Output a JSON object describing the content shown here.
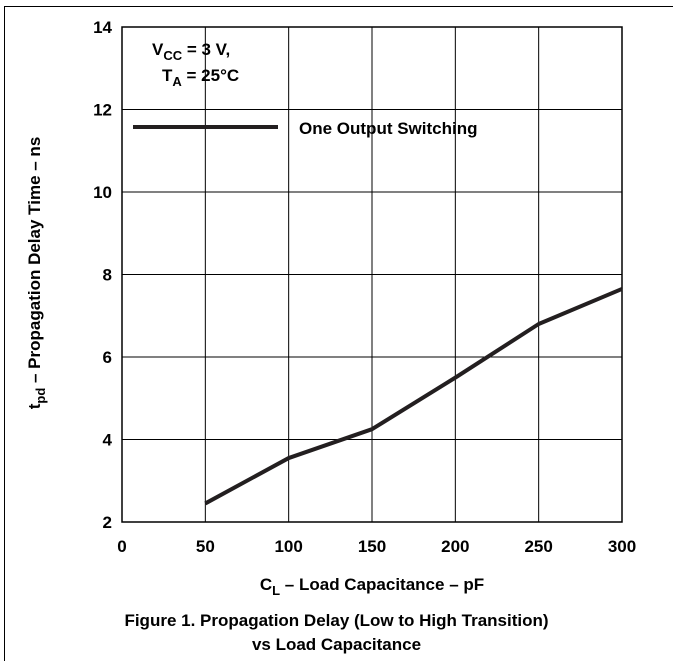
{
  "chart_data": {
    "type": "line",
    "x": [
      50,
      100,
      150,
      200,
      250,
      300
    ],
    "series": [
      {
        "name": "One Output Switching",
        "values": [
          2.45,
          3.55,
          4.25,
          5.5,
          6.8,
          7.65
        ]
      }
    ],
    "xlim": [
      0,
      300
    ],
    "ylim": [
      2,
      14
    ],
    "x_ticks": [
      "0",
      "50",
      "100",
      "150",
      "200",
      "250",
      "300"
    ],
    "y_ticks": [
      "2",
      "4",
      "6",
      "8",
      "10",
      "12",
      "14"
    ],
    "grid": true,
    "legend_position": "top-left",
    "line_color": "#231f20",
    "conditions": {
      "vcc": {
        "main": "V",
        "sub": "CC",
        "rest": " = 3 V,"
      },
      "ta": {
        "main": "T",
        "sub": "A",
        "rest": " = 25°C"
      }
    },
    "xlabel": {
      "main": "C",
      "sub": "L",
      "rest": " – Load Capacitance – pF"
    },
    "ylabel": {
      "main": "t",
      "sub": "pd",
      "rest": " – Propagation Delay Time – ns"
    }
  },
  "caption": {
    "line1": "Figure 1. Propagation Delay (Low to High Transition)",
    "line2": "vs Load Capacitance"
  }
}
